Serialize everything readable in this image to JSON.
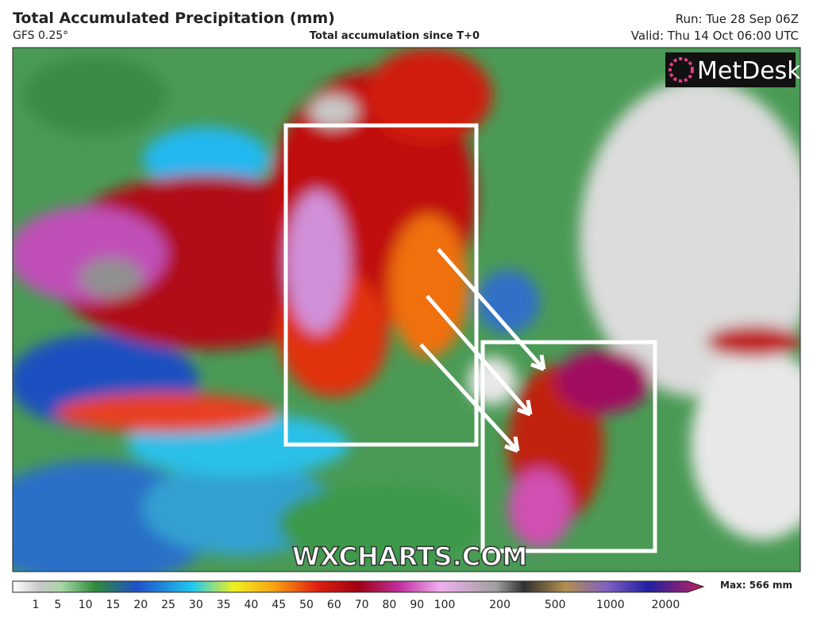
{
  "header": {
    "title": "Total Accumulated Precipitation (mm)",
    "model": "GFS 0.25°",
    "subtitle": "Total accumulation since T+0",
    "run": "Run: Tue 28 Sep 06Z",
    "valid": "Valid: Thu 14 Oct 06:00 UTC"
  },
  "logo": "MetDesk",
  "watermark": "WXCHARTS.COM",
  "colorbar": {
    "ticks": [
      1,
      5,
      10,
      15,
      20,
      25,
      30,
      35,
      40,
      45,
      50,
      60,
      70,
      80,
      90,
      100,
      200,
      500,
      1000,
      2000
    ],
    "max_label": "Max: 566 mm"
  }
}
